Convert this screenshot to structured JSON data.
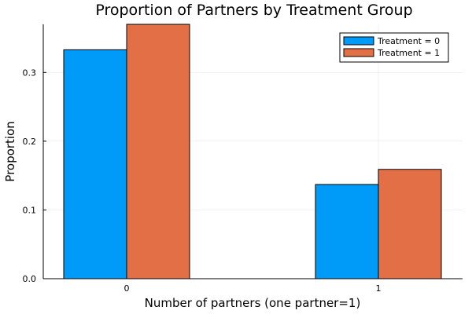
{
  "chart_data": {
    "type": "bar",
    "title": "Proportion of Partners by Treatment Group",
    "xlabel": "Number of partners (one partner=1)",
    "ylabel": "Proportion",
    "categories": [
      "0",
      "1"
    ],
    "series": [
      {
        "name": "Treatment = 0",
        "color": "#009af9",
        "values": [
          0.333,
          0.137
        ]
      },
      {
        "name": "Treatment = 1",
        "color": "#e26f46",
        "values": [
          0.37,
          0.159
        ]
      }
    ],
    "yticks": [
      0.0,
      0.1,
      0.2,
      0.3
    ],
    "ytick_labels": [
      "0.0",
      "0.1",
      "0.2",
      "0.3"
    ],
    "ylim": [
      0,
      0.37
    ],
    "grid": true,
    "legend_position": "top-right"
  }
}
